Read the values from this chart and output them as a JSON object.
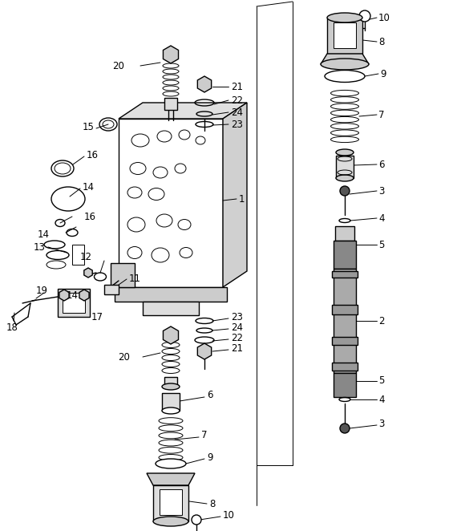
{
  "background_color": "#ffffff",
  "line_color": "#000000",
  "fig_width": 5.7,
  "fig_height": 6.62,
  "dpi": 100
}
